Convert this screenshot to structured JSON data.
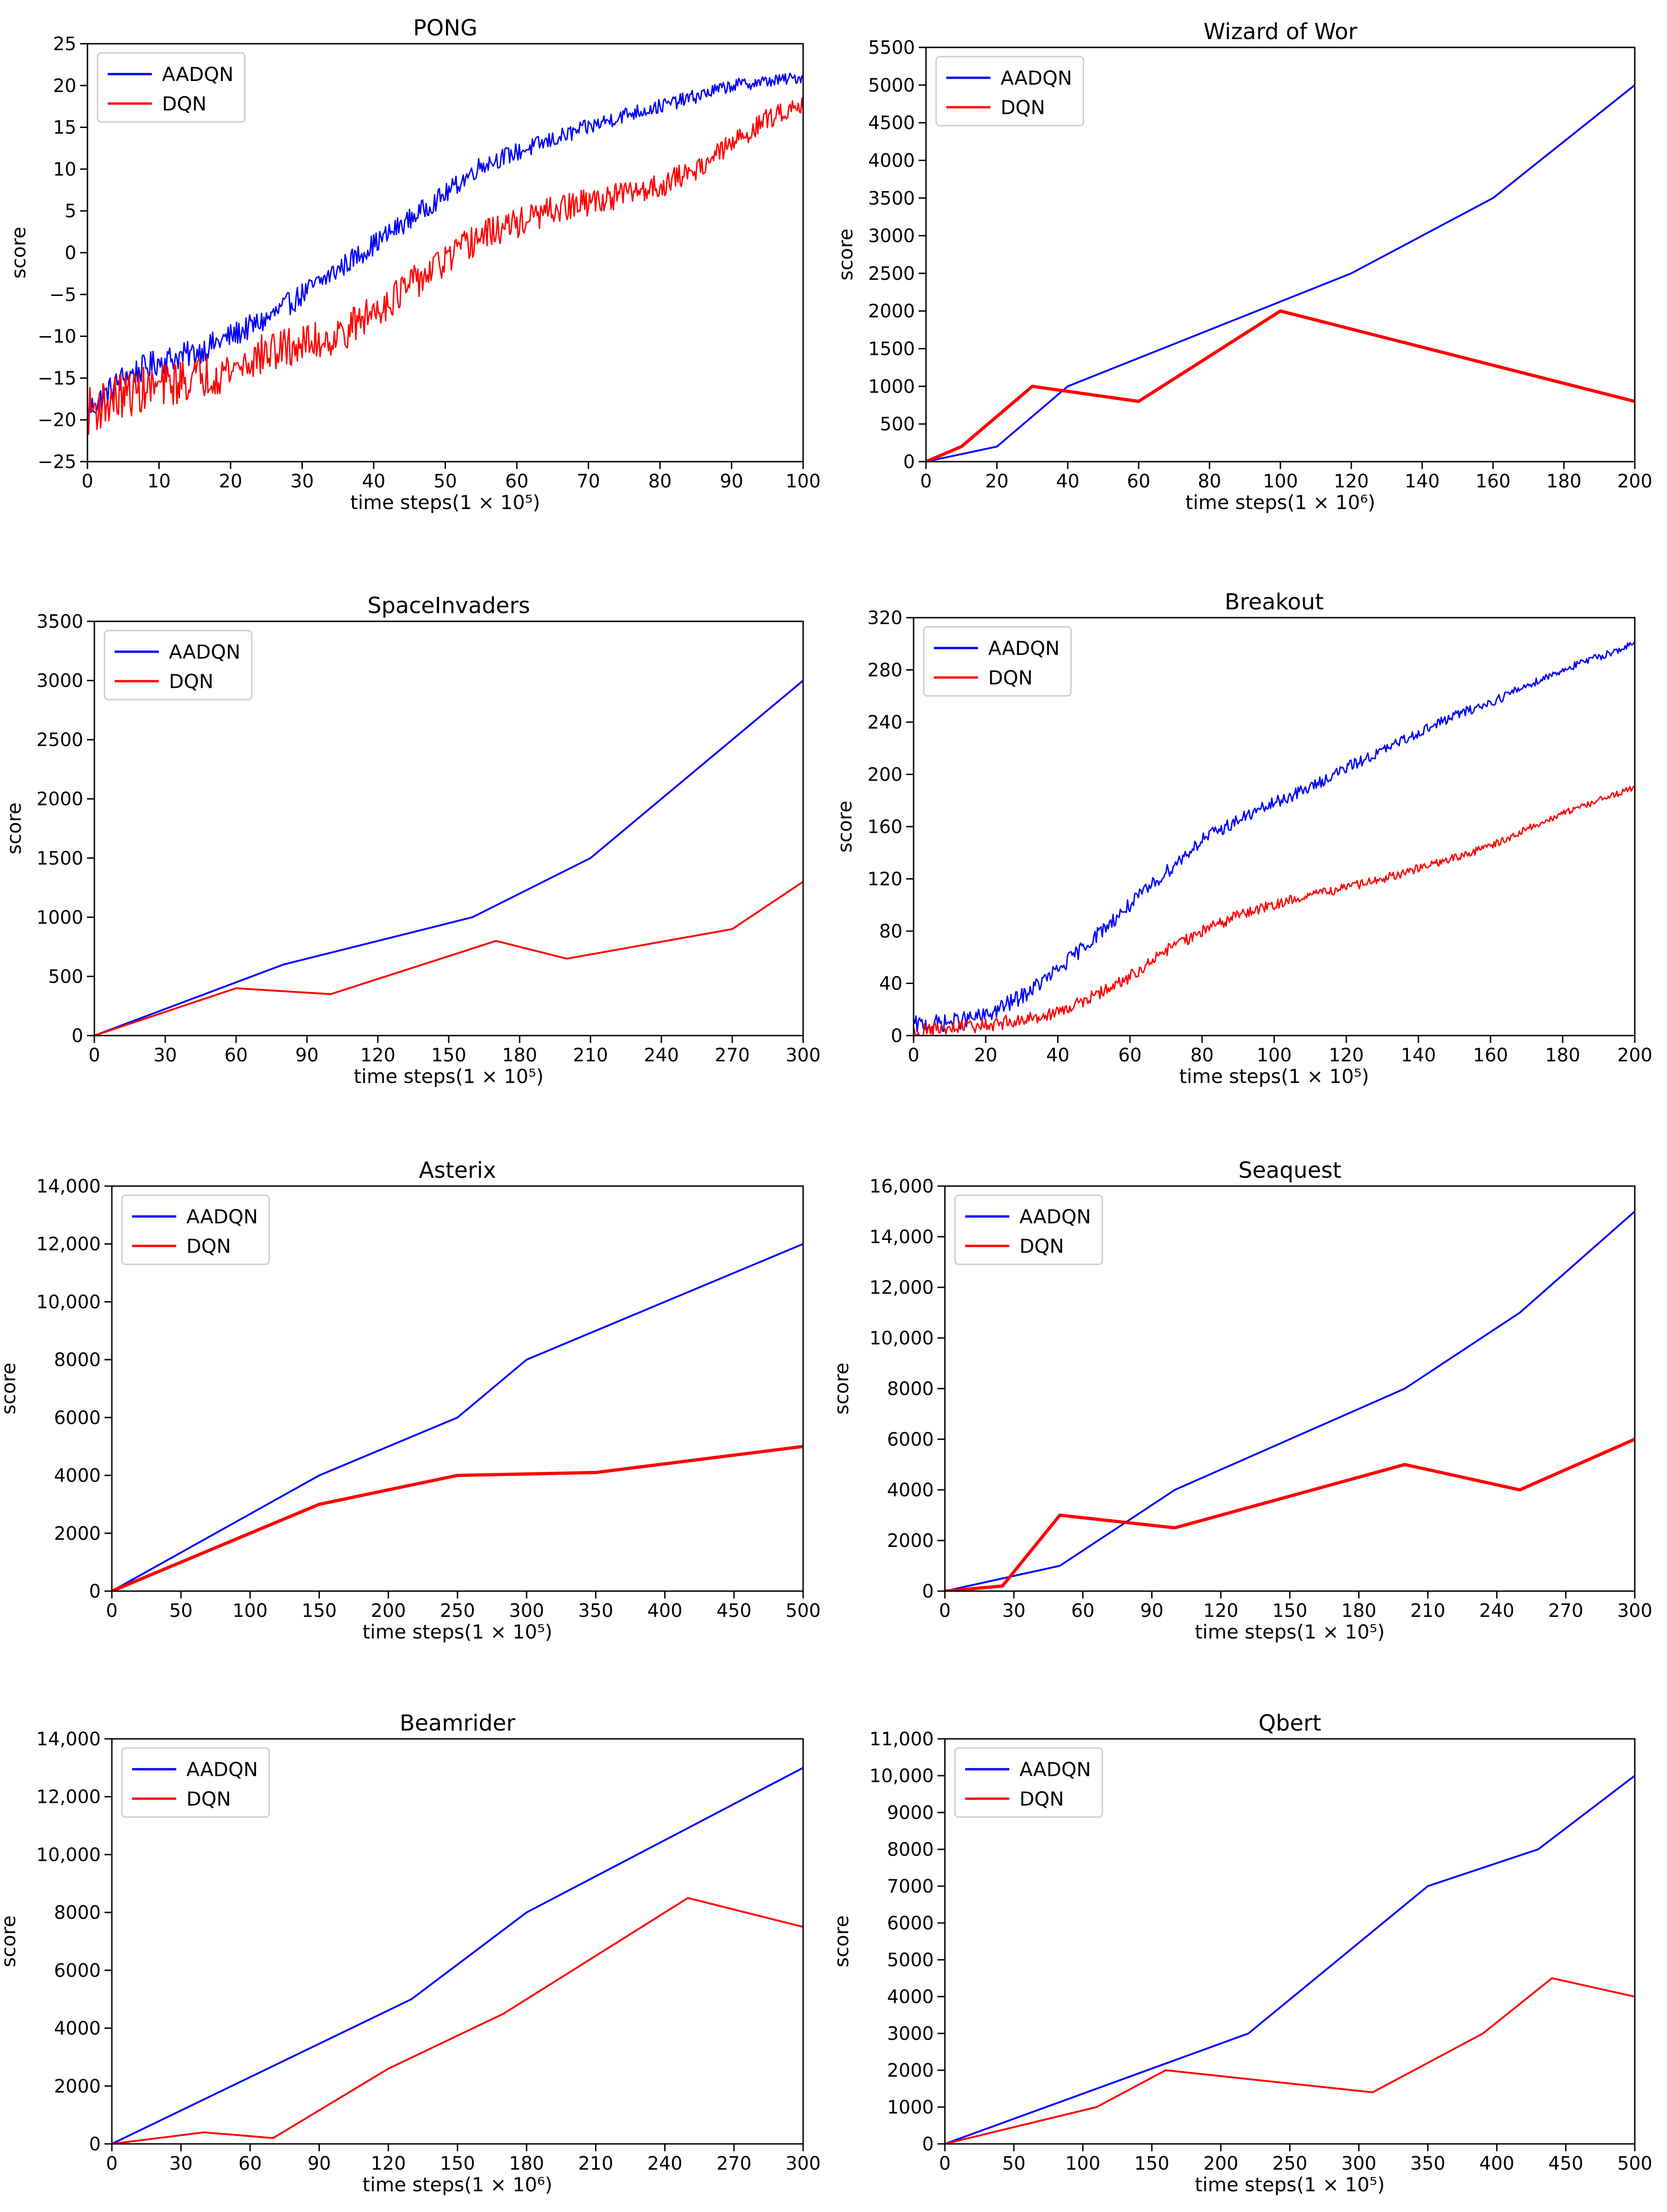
{
  "figure": {
    "legend_labels": [
      "AADQN",
      "DQN"
    ],
    "colors": {
      "aadqn": "#0000ff",
      "dqn": "#ff0000"
    }
  },
  "chart_data": [
    {
      "type": "line",
      "title": "PONG",
      "xlabel": "time steps(1 × 10⁵)",
      "ylabel": "score",
      "xlim": [
        0,
        100
      ],
      "ylim": [
        -25,
        25
      ],
      "xticks": [
        0,
        10,
        20,
        30,
        40,
        50,
        60,
        70,
        80,
        90,
        100
      ],
      "xtick_labels": [
        "0",
        "10",
        "20",
        "30",
        "40",
        "50",
        "60",
        "70",
        "80",
        "90",
        "100"
      ],
      "yticks": [
        -25,
        -20,
        -15,
        -10,
        -5,
        0,
        5,
        10,
        15,
        20,
        25
      ],
      "ytick_labels": [
        "−25",
        "−20",
        "−15",
        "−10",
        "−5",
        "0",
        "5",
        "10",
        "15",
        "20",
        "25"
      ],
      "legend": "top-left",
      "noisy": true,
      "series": [
        {
          "name": "AADQN",
          "x": [
            0,
            5,
            10,
            15,
            20,
            25,
            30,
            35,
            40,
            45,
            50,
            55,
            60,
            65,
            70,
            75,
            80,
            85,
            90,
            95,
            100
          ],
          "values": [
            -19,
            -15,
            -13,
            -12,
            -10,
            -8,
            -5,
            -2,
            1,
            4,
            7,
            10.5,
            12,
            13.5,
            15,
            16.5,
            17.5,
            18.7,
            20,
            20.5,
            21
          ],
          "noise": 1.5
        },
        {
          "name": "DQN",
          "x": [
            0,
            5,
            10,
            15,
            20,
            25,
            30,
            35,
            40,
            45,
            50,
            55,
            60,
            65,
            70,
            75,
            80,
            85,
            90,
            95,
            100
          ],
          "values": [
            -19,
            -17,
            -16,
            -15,
            -14,
            -12,
            -11,
            -10,
            -7,
            -4,
            -1,
            2,
            3.5,
            5,
            6,
            7,
            8,
            10,
            13,
            16,
            18
          ],
          "noise": 2.5
        }
      ]
    },
    {
      "type": "line",
      "title": "Wizard of Wor",
      "xlabel": "time steps(1 × 10⁶)",
      "ylabel": "score",
      "xlim": [
        0,
        200
      ],
      "ylim": [
        0,
        5500
      ],
      "xticks": [
        0,
        20,
        40,
        60,
        80,
        100,
        120,
        140,
        160,
        180,
        200
      ],
      "xtick_labels": [
        "0",
        "20",
        "40",
        "60",
        "80",
        "100",
        "120",
        "140",
        "160",
        "180",
        "200"
      ],
      "yticks": [
        0,
        500,
        1000,
        1500,
        2000,
        2500,
        3000,
        3500,
        4000,
        4500,
        5000,
        5500
      ],
      "ytick_labels": [
        "0",
        "500",
        "1000",
        "1500",
        "2000",
        "2500",
        "3000",
        "3500",
        "4000",
        "4500",
        "5000",
        "5500"
      ],
      "legend": "top-left",
      "series": [
        {
          "name": "AADQN",
          "x": [
            0,
            20,
            40,
            120,
            160,
            200
          ],
          "values": [
            0,
            200,
            1000,
            2500,
            3500,
            5000
          ]
        },
        {
          "name": "DQN",
          "x": [
            0,
            10,
            30,
            60,
            100,
            200
          ],
          "values": [
            0,
            200,
            1000,
            800,
            2000,
            800
          ],
          "thick": true
        }
      ]
    },
    {
      "type": "line",
      "title": "SpaceInvaders",
      "xlabel": "time steps(1 × 10⁵)",
      "ylabel": "score",
      "xlim": [
        0,
        300
      ],
      "ylim": [
        0,
        3500
      ],
      "xticks": [
        0,
        30,
        60,
        90,
        120,
        150,
        180,
        210,
        240,
        270,
        300
      ],
      "xtick_labels": [
        "0",
        "30",
        "60",
        "90",
        "120",
        "150",
        "180",
        "210",
        "240",
        "270",
        "300"
      ],
      "yticks": [
        0,
        500,
        1000,
        1500,
        2000,
        2500,
        3000,
        3500
      ],
      "ytick_labels": [
        "0",
        "500",
        "1000",
        "1500",
        "2000",
        "2500",
        "3000",
        "3500"
      ],
      "legend": "top-left",
      "series": [
        {
          "name": "AADQN",
          "x": [
            0,
            80,
            160,
            210,
            300
          ],
          "values": [
            0,
            600,
            1000,
            1500,
            3000
          ]
        },
        {
          "name": "DQN",
          "x": [
            0,
            60,
            100,
            170,
            200,
            270,
            300
          ],
          "values": [
            0,
            400,
            350,
            800,
            650,
            900,
            1300
          ]
        }
      ]
    },
    {
      "type": "line",
      "title": "Breakout",
      "xlabel": "time steps(1 × 10⁵)",
      "ylabel": "score",
      "xlim": [
        0,
        200
      ],
      "ylim": [
        0,
        320
      ],
      "xticks": [
        0,
        20,
        40,
        60,
        80,
        100,
        120,
        140,
        160,
        180,
        200
      ],
      "xtick_labels": [
        "0",
        "20",
        "40",
        "60",
        "80",
        "100",
        "120",
        "140",
        "160",
        "180",
        "200"
      ],
      "yticks": [
        0,
        40,
        80,
        120,
        160,
        200,
        240,
        280,
        320
      ],
      "ytick_labels": [
        "0",
        "40",
        "80",
        "120",
        "160",
        "200",
        "240",
        "280",
        "320"
      ],
      "legend": "top-left",
      "noisy": true,
      "series": [
        {
          "name": "AADQN",
          "x": [
            0,
            10,
            20,
            30,
            40,
            50,
            60,
            70,
            80,
            90,
            100,
            110,
            120,
            130,
            140,
            150,
            160,
            170,
            180,
            190,
            200
          ],
          "values": [
            8,
            10,
            15,
            30,
            50,
            75,
            100,
            125,
            150,
            165,
            178,
            190,
            205,
            218,
            232,
            245,
            255,
            268,
            280,
            290,
            300
          ],
          "noise": 6
        },
        {
          "name": "DQN",
          "x": [
            0,
            10,
            20,
            30,
            40,
            50,
            60,
            70,
            80,
            90,
            100,
            110,
            120,
            130,
            140,
            150,
            160,
            170,
            180,
            190,
            200
          ],
          "values": [
            3,
            5,
            8,
            12,
            18,
            30,
            45,
            65,
            80,
            92,
            100,
            108,
            113,
            120,
            128,
            136,
            145,
            158,
            170,
            180,
            190
          ],
          "noise": 5
        }
      ]
    },
    {
      "type": "line",
      "title": "Asterix",
      "xlabel": "time steps(1 × 10⁵)",
      "ylabel": "score",
      "xlim": [
        0,
        500
      ],
      "ylim": [
        0,
        14000
      ],
      "xticks": [
        0,
        50,
        100,
        150,
        200,
        250,
        300,
        350,
        400,
        450,
        500
      ],
      "xtick_labels": [
        "0",
        "50",
        "100",
        "150",
        "200",
        "250",
        "300",
        "350",
        "400",
        "450",
        "500"
      ],
      "yticks": [
        0,
        2000,
        4000,
        6000,
        8000,
        10000,
        12000,
        14000
      ],
      "ytick_labels": [
        "0",
        "2000",
        "4000",
        "6000",
        "8000",
        "10,000",
        "12,000",
        "14,000"
      ],
      "legend": "top-left",
      "series": [
        {
          "name": "AADQN",
          "x": [
            0,
            150,
            250,
            300,
            500
          ],
          "values": [
            0,
            4000,
            6000,
            8000,
            12000
          ]
        },
        {
          "name": "DQN",
          "x": [
            0,
            150,
            250,
            350,
            500
          ],
          "values": [
            0,
            3000,
            4000,
            4100,
            5000
          ],
          "thick": true
        }
      ]
    },
    {
      "type": "line",
      "title": "Seaquest",
      "xlabel": "time steps(1 × 10⁵)",
      "ylabel": "score",
      "xlim": [
        0,
        300
      ],
      "ylim": [
        0,
        16000
      ],
      "xticks": [
        0,
        30,
        60,
        90,
        120,
        150,
        180,
        210,
        240,
        270,
        300
      ],
      "xtick_labels": [
        "0",
        "30",
        "60",
        "90",
        "120",
        "150",
        "180",
        "210",
        "240",
        "270",
        "300"
      ],
      "yticks": [
        0,
        2000,
        4000,
        6000,
        8000,
        10000,
        12000,
        14000,
        16000
      ],
      "ytick_labels": [
        "0",
        "2000",
        "4000",
        "6000",
        "8000",
        "10,000",
        "12,000",
        "14,000",
        "16,000"
      ],
      "legend": "top-left",
      "series": [
        {
          "name": "AADQN",
          "x": [
            0,
            25,
            50,
            100,
            200,
            250,
            300
          ],
          "values": [
            0,
            500,
            1000,
            4000,
            8000,
            11000,
            15000
          ]
        },
        {
          "name": "DQN",
          "x": [
            0,
            25,
            50,
            100,
            200,
            250,
            300
          ],
          "values": [
            0,
            200,
            3000,
            2500,
            5000,
            4000,
            6000
          ],
          "thick": true
        }
      ]
    },
    {
      "type": "line",
      "title": "Beamrider",
      "xlabel": "time steps(1 × 10⁶)",
      "ylabel": "score",
      "xlim": [
        0,
        300
      ],
      "ylim": [
        0,
        14000
      ],
      "xticks": [
        0,
        30,
        60,
        90,
        120,
        150,
        180,
        210,
        240,
        270,
        300
      ],
      "xtick_labels": [
        "0",
        "30",
        "60",
        "90",
        "120",
        "150",
        "180",
        "210",
        "240",
        "270",
        "300"
      ],
      "yticks": [
        0,
        2000,
        4000,
        6000,
        8000,
        10000,
        12000,
        14000
      ],
      "ytick_labels": [
        "0",
        "2000",
        "4000",
        "6000",
        "8000",
        "10,000",
        "12,000",
        "14,000"
      ],
      "legend": "top-left",
      "series": [
        {
          "name": "AADQN",
          "x": [
            0,
            130,
            180,
            300
          ],
          "values": [
            0,
            5000,
            8000,
            13000
          ]
        },
        {
          "name": "DQN",
          "x": [
            0,
            40,
            70,
            120,
            170,
            250,
            300
          ],
          "values": [
            0,
            400,
            200,
            2600,
            4500,
            8500,
            7500
          ]
        }
      ]
    },
    {
      "type": "line",
      "title": "Qbert",
      "xlabel": "time steps(1 × 10⁵)",
      "ylabel": "score",
      "xlim": [
        0,
        500
      ],
      "ylim": [
        0,
        11000
      ],
      "xticks": [
        0,
        50,
        100,
        150,
        200,
        250,
        300,
        350,
        400,
        450,
        500
      ],
      "xtick_labels": [
        "0",
        "50",
        "100",
        "150",
        "200",
        "250",
        "300",
        "350",
        "400",
        "450",
        "500"
      ],
      "yticks": [
        0,
        1000,
        2000,
        3000,
        4000,
        5000,
        6000,
        7000,
        8000,
        9000,
        10000,
        11000
      ],
      "ytick_labels": [
        "0",
        "1000",
        "2000",
        "3000",
        "4000",
        "5000",
        "6000",
        "7000",
        "8000",
        "9000",
        "10,000",
        "11,000"
      ],
      "legend": "top-left",
      "series": [
        {
          "name": "AADQN",
          "x": [
            0,
            220,
            350,
            430,
            500
          ],
          "values": [
            0,
            3000,
            7000,
            8000,
            10000
          ]
        },
        {
          "name": "DQN",
          "x": [
            0,
            110,
            160,
            310,
            390,
            440,
            500
          ],
          "values": [
            0,
            1000,
            2000,
            1400,
            3000,
            4500,
            4000
          ]
        }
      ]
    }
  ]
}
